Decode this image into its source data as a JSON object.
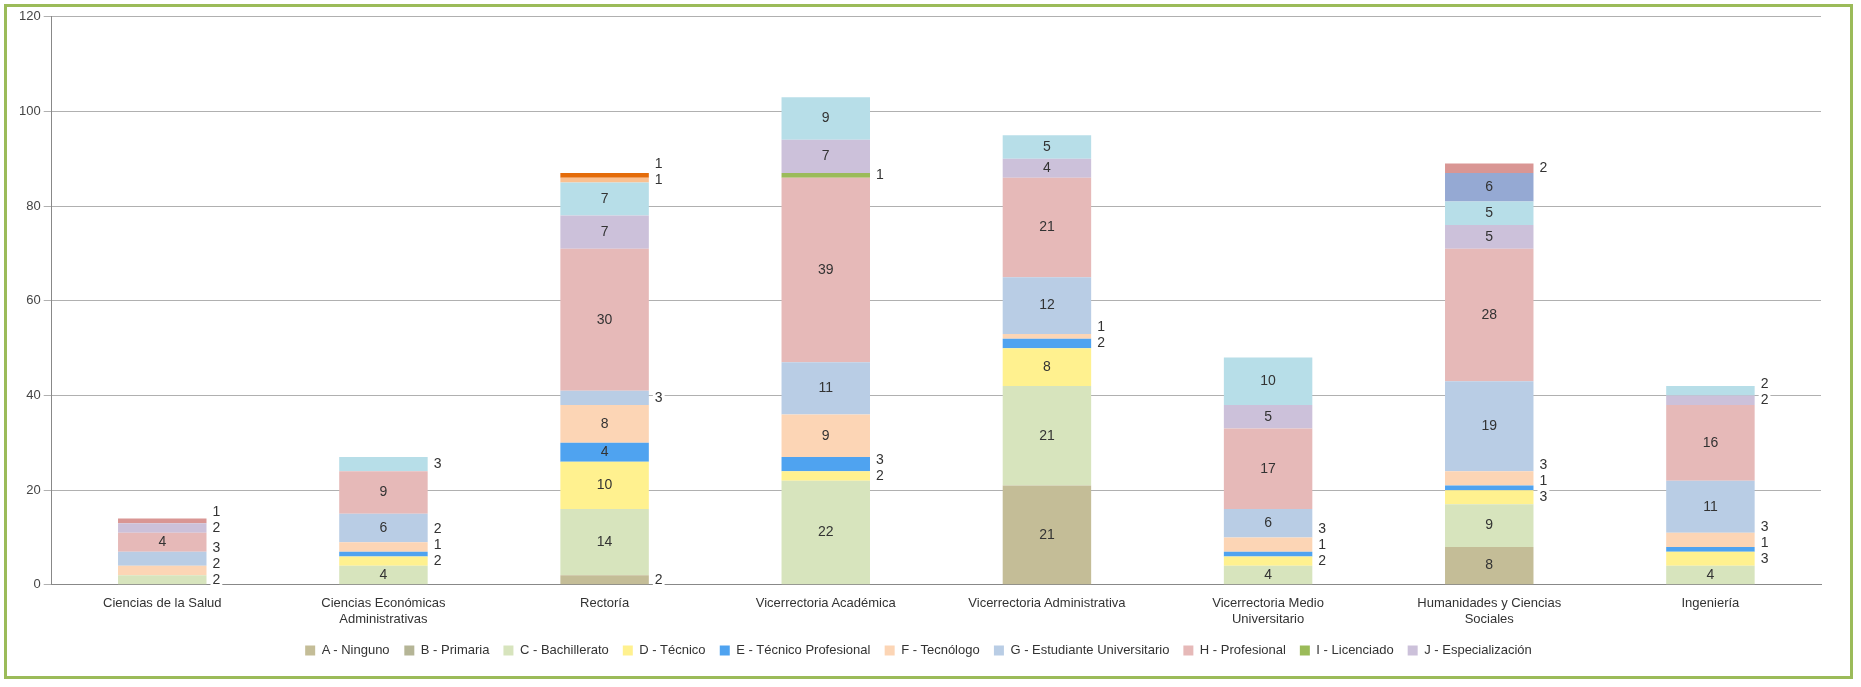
{
  "chart_data": {
    "type": "bar",
    "stacked": true,
    "data_labels": true,
    "grid": "y",
    "legend": "bottom",
    "ylim": [
      0,
      120
    ],
    "yticks": [
      0,
      20,
      40,
      60,
      80,
      100,
      120
    ],
    "categories": [
      "Ciencias de la Salud",
      "Ciencias Económicas Administrativas",
      "Rectoría",
      "Vicerrectoria Académica",
      "Vicerrectoria Administrativa",
      "Vicerrectoria Medio Universitario",
      "Humanidades y Ciencias Sociales",
      "Ingeniería"
    ],
    "series": [
      {
        "name": "A - Ninguno",
        "color": "#c4bd97",
        "values": [
          null,
          null,
          2,
          null,
          21,
          null,
          8,
          null
        ]
      },
      {
        "name": "B - Primaria",
        "color": "#b5b596",
        "values": [
          null,
          null,
          null,
          null,
          null,
          null,
          null,
          null
        ]
      },
      {
        "name": "C - Bachillerato",
        "color": "#d7e4bd",
        "values": [
          2,
          4,
          14,
          22,
          21,
          4,
          9,
          4
        ]
      },
      {
        "name": "D - Técnico",
        "color": "#fff18f",
        "values": [
          null,
          2,
          10,
          2,
          8,
          2,
          3,
          3
        ]
      },
      {
        "name": "E - Técnico Profesional",
        "color": "#4fa3f0",
        "values": [
          null,
          1,
          4,
          3,
          2,
          1,
          1,
          1
        ]
      },
      {
        "name": "F - Tecnólogo",
        "color": "#fcd5b5",
        "values": [
          2,
          2,
          8,
          9,
          1,
          3,
          3,
          3
        ]
      },
      {
        "name": "G - Estudiante Universitario",
        "color": "#b9cde5",
        "values": [
          3,
          6,
          3,
          11,
          12,
          6,
          19,
          11
        ]
      },
      {
        "name": "H - Profesional",
        "color": "#e6b9b8",
        "values": [
          4,
          9,
          30,
          39,
          21,
          17,
          28,
          16
        ]
      },
      {
        "name": "I - Licenciado",
        "color": "#9bbb59",
        "values": [
          null,
          null,
          null,
          1,
          null,
          null,
          null,
          null
        ]
      },
      {
        "name": "J - Especialización",
        "color": "#ccc1da",
        "values": [
          2,
          null,
          7,
          7,
          4,
          5,
          5,
          2
        ]
      },
      {
        "color": "#b7dee8",
        "values": [
          null,
          3,
          7,
          9,
          5,
          10,
          5,
          2
        ]
      },
      {
        "color": "#fac090",
        "values": [
          null,
          null,
          1,
          null,
          null,
          null,
          null,
          null
        ]
      },
      {
        "color": "#e46c0a",
        "values": [
          null,
          null,
          1,
          null,
          null,
          null,
          null,
          null
        ]
      },
      {
        "color": "#95a9d3",
        "values": [
          null,
          null,
          null,
          null,
          null,
          null,
          6,
          null
        ]
      },
      {
        "color": "#d99694",
        "values": [
          1,
          null,
          null,
          null,
          null,
          null,
          2,
          null
        ]
      }
    ]
  }
}
